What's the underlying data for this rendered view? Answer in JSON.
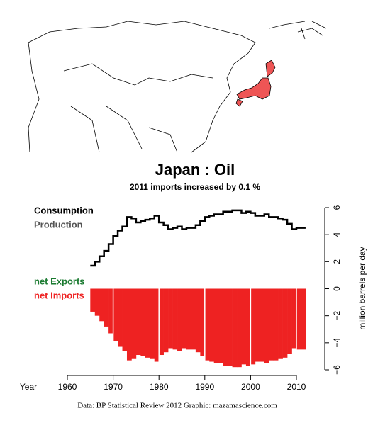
{
  "chart_data": {
    "type": "step-bar",
    "title": "Japan :  Oil",
    "subtitle": "2011 imports increased by 0.1 %",
    "x_label": "Year",
    "y_label": "million barrels per day",
    "footer": "Data: BP Statistical Review 2012    Graphic: mazamascience.com",
    "legend": [
      {
        "name": "Consumption",
        "color": "#000000"
      },
      {
        "name": "Production",
        "color": "#555555"
      },
      {
        "name": "net Exports",
        "color": "#1a7a30"
      },
      {
        "name": "net Imports",
        "color": "#ee2222"
      }
    ],
    "x": [
      1965,
      1966,
      1967,
      1968,
      1969,
      1970,
      1971,
      1972,
      1973,
      1974,
      1975,
      1976,
      1977,
      1978,
      1979,
      1980,
      1981,
      1982,
      1983,
      1984,
      1985,
      1986,
      1987,
      1988,
      1989,
      1990,
      1991,
      1992,
      1993,
      1994,
      1995,
      1996,
      1997,
      1998,
      1999,
      2000,
      2001,
      2002,
      2003,
      2004,
      2005,
      2006,
      2007,
      2008,
      2009,
      2010,
      2011
    ],
    "series": [
      {
        "name": "Consumption",
        "color": "#000000",
        "values": [
          1.7,
          2.0,
          2.4,
          2.8,
          3.3,
          3.9,
          4.3,
          4.6,
          5.3,
          5.2,
          4.9,
          5.0,
          5.1,
          5.2,
          5.4,
          4.9,
          4.7,
          4.4,
          4.5,
          4.6,
          4.4,
          4.5,
          4.5,
          4.7,
          5.0,
          5.3,
          5.4,
          5.5,
          5.5,
          5.7,
          5.7,
          5.8,
          5.8,
          5.6,
          5.7,
          5.6,
          5.4,
          5.4,
          5.5,
          5.3,
          5.3,
          5.2,
          5.1,
          4.8,
          4.4,
          4.5,
          4.5
        ]
      },
      {
        "name": "net Imports",
        "color": "#ee2222",
        "values": [
          -1.7,
          -2.0,
          -2.4,
          -2.8,
          -3.3,
          -3.9,
          -4.3,
          -4.6,
          -5.3,
          -5.2,
          -4.9,
          -5.0,
          -5.1,
          -5.2,
          -5.4,
          -4.9,
          -4.7,
          -4.4,
          -4.5,
          -4.6,
          -4.4,
          -4.5,
          -4.5,
          -4.7,
          -5.0,
          -5.3,
          -5.4,
          -5.5,
          -5.5,
          -5.7,
          -5.7,
          -5.8,
          -5.8,
          -5.6,
          -5.7,
          -5.6,
          -5.4,
          -5.4,
          -5.5,
          -5.3,
          -5.3,
          -5.2,
          -5.1,
          -4.8,
          -4.4,
          -4.5,
          -4.5
        ]
      }
    ],
    "xlim": [
      1960,
      2012
    ],
    "xticks": [
      1960,
      1970,
      1980,
      1990,
      2000,
      2010
    ],
    "ylim": [
      -6,
      6
    ],
    "yticks": [
      {
        "value": -6,
        "label": "−6"
      },
      {
        "value": -4,
        "label": "−4"
      },
      {
        "value": -2,
        "label": "−2"
      },
      0,
      2,
      4,
      6
    ]
  }
}
